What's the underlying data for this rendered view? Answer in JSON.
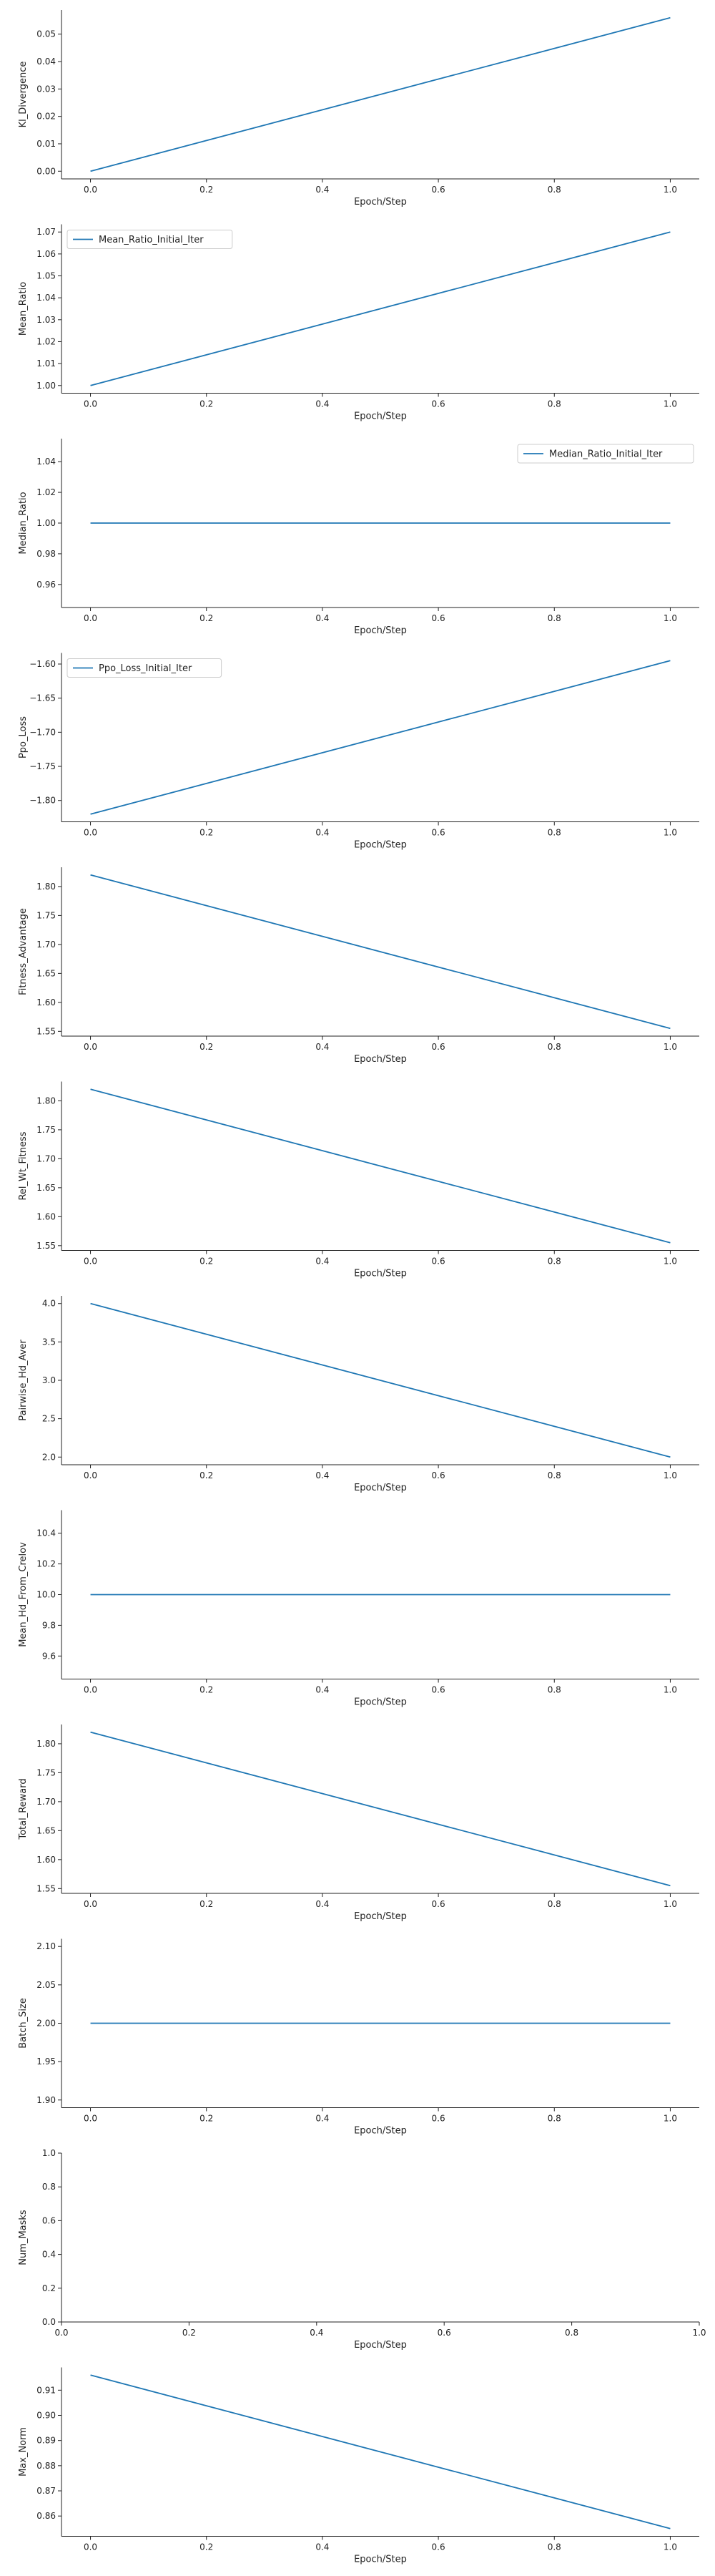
{
  "page": {
    "background": "#ffffff"
  },
  "style": {
    "line_color": "#1f77b4",
    "axis_color": "#222222",
    "legend_border": "#cccccc"
  },
  "chart_data": [
    {
      "type": "line",
      "ylabel": "Kl_Divergence",
      "xlabel": "Epoch/Step",
      "x": [
        0.0,
        1.0
      ],
      "series": [
        {
          "values": [
            0.0,
            0.056
          ]
        }
      ],
      "xlim": [
        -0.05,
        1.05
      ],
      "ylim": [
        -0.0028,
        0.0588
      ],
      "xticks": [
        0.0,
        0.2,
        0.4,
        0.6,
        0.8,
        1.0
      ],
      "xtick_labels": [
        "0.0",
        "0.2",
        "0.4",
        "0.6",
        "0.8",
        "1.0"
      ],
      "yticks": [
        0.0,
        0.01,
        0.02,
        0.03,
        0.04,
        0.05
      ],
      "ytick_labels": [
        "0.00",
        "0.01",
        "0.02",
        "0.03",
        "0.04",
        "0.05"
      ],
      "legend": null
    },
    {
      "type": "line",
      "ylabel": "Mean_Ratio",
      "xlabel": "Epoch/Step",
      "x": [
        0.0,
        1.0
      ],
      "series": [
        {
          "name": "Mean_Ratio_Initial_Iter",
          "values": [
            1.0,
            1.07
          ]
        }
      ],
      "xlim": [
        -0.05,
        1.05
      ],
      "ylim": [
        0.9965,
        1.0735
      ],
      "xticks": [
        0.0,
        0.2,
        0.4,
        0.6,
        0.8,
        1.0
      ],
      "xtick_labels": [
        "0.0",
        "0.2",
        "0.4",
        "0.6",
        "0.8",
        "1.0"
      ],
      "yticks": [
        1.0,
        1.01,
        1.02,
        1.03,
        1.04,
        1.05,
        1.06,
        1.07
      ],
      "ytick_labels": [
        "1.00",
        "1.01",
        "1.02",
        "1.03",
        "1.04",
        "1.05",
        "1.06",
        "1.07"
      ],
      "legend": "upper-left"
    },
    {
      "type": "line",
      "ylabel": "Median_Ratio",
      "xlabel": "Epoch/Step",
      "x": [
        0.0,
        1.0
      ],
      "series": [
        {
          "name": "Median_Ratio_Initial_Iter",
          "values": [
            1.0,
            1.0
          ]
        }
      ],
      "xlim": [
        -0.05,
        1.05
      ],
      "ylim": [
        0.945,
        1.055
      ],
      "xticks": [
        0.0,
        0.2,
        0.4,
        0.6,
        0.8,
        1.0
      ],
      "xtick_labels": [
        "0.0",
        "0.2",
        "0.4",
        "0.6",
        "0.8",
        "1.0"
      ],
      "yticks": [
        0.96,
        0.98,
        1.0,
        1.02,
        1.04
      ],
      "ytick_labels": [
        "0.96",
        "0.98",
        "1.00",
        "1.02",
        "1.04"
      ],
      "legend": "upper-right"
    },
    {
      "type": "line",
      "ylabel": "Ppo_Loss",
      "xlabel": "Epoch/Step",
      "x": [
        0.0,
        1.0
      ],
      "series": [
        {
          "name": "Ppo_Loss_Initial_Iter",
          "values": [
            -1.82,
            -1.595
          ]
        }
      ],
      "xlim": [
        -0.05,
        1.05
      ],
      "ylim": [
        -1.83125,
        -1.58375
      ],
      "xticks": [
        0.0,
        0.2,
        0.4,
        0.6,
        0.8,
        1.0
      ],
      "xtick_labels": [
        "0.0",
        "0.2",
        "0.4",
        "0.6",
        "0.8",
        "1.0"
      ],
      "yticks": [
        -1.8,
        -1.75,
        -1.7,
        -1.65,
        -1.6
      ],
      "ytick_labels": [
        "−1.80",
        "−1.75",
        "−1.70",
        "−1.65",
        "−1.60"
      ],
      "legend": "upper-left"
    },
    {
      "type": "line",
      "ylabel": "Fitness_Advantage",
      "xlabel": "Epoch/Step",
      "x": [
        0.0,
        1.0
      ],
      "series": [
        {
          "values": [
            1.82,
            1.555
          ]
        }
      ],
      "xlim": [
        -0.05,
        1.05
      ],
      "ylim": [
        1.54175,
        1.83325
      ],
      "xticks": [
        0.0,
        0.2,
        0.4,
        0.6,
        0.8,
        1.0
      ],
      "xtick_labels": [
        "0.0",
        "0.2",
        "0.4",
        "0.6",
        "0.8",
        "1.0"
      ],
      "yticks": [
        1.55,
        1.6,
        1.65,
        1.7,
        1.75,
        1.8
      ],
      "ytick_labels": [
        "1.55",
        "1.60",
        "1.65",
        "1.70",
        "1.75",
        "1.80"
      ],
      "legend": null
    },
    {
      "type": "line",
      "ylabel": "Rel_Wt_Fitness",
      "xlabel": "Epoch/Step",
      "x": [
        0.0,
        1.0
      ],
      "series": [
        {
          "values": [
            1.82,
            1.555
          ]
        }
      ],
      "xlim": [
        -0.05,
        1.05
      ],
      "ylim": [
        1.54175,
        1.83325
      ],
      "xticks": [
        0.0,
        0.2,
        0.4,
        0.6,
        0.8,
        1.0
      ],
      "xtick_labels": [
        "0.0",
        "0.2",
        "0.4",
        "0.6",
        "0.8",
        "1.0"
      ],
      "yticks": [
        1.55,
        1.6,
        1.65,
        1.7,
        1.75,
        1.8
      ],
      "ytick_labels": [
        "1.55",
        "1.60",
        "1.65",
        "1.70",
        "1.75",
        "1.80"
      ],
      "legend": null
    },
    {
      "type": "line",
      "ylabel": "Pairwise_Hd_Aver",
      "xlabel": "Epoch/Step",
      "x": [
        0.0,
        1.0
      ],
      "series": [
        {
          "values": [
            4.0,
            2.0
          ]
        }
      ],
      "xlim": [
        -0.05,
        1.05
      ],
      "ylim": [
        1.9,
        4.1
      ],
      "xticks": [
        0.0,
        0.2,
        0.4,
        0.6,
        0.8,
        1.0
      ],
      "xtick_labels": [
        "0.0",
        "0.2",
        "0.4",
        "0.6",
        "0.8",
        "1.0"
      ],
      "yticks": [
        2.0,
        2.5,
        3.0,
        3.5,
        4.0
      ],
      "ytick_labels": [
        "2.0",
        "2.5",
        "3.0",
        "3.5",
        "4.0"
      ],
      "legend": null
    },
    {
      "type": "line",
      "ylabel": "Mean_Hd_From_Crelov",
      "xlabel": "Epoch/Step",
      "x": [
        0.0,
        1.0
      ],
      "series": [
        {
          "values": [
            10.0,
            10.0
          ]
        }
      ],
      "xlim": [
        -0.05,
        1.05
      ],
      "ylim": [
        9.45,
        10.55
      ],
      "xticks": [
        0.0,
        0.2,
        0.4,
        0.6,
        0.8,
        1.0
      ],
      "xtick_labels": [
        "0.0",
        "0.2",
        "0.4",
        "0.6",
        "0.8",
        "1.0"
      ],
      "yticks": [
        9.6,
        9.8,
        10.0,
        10.2,
        10.4
      ],
      "ytick_labels": [
        "9.6",
        "9.8",
        "10.0",
        "10.2",
        "10.4"
      ],
      "legend": null
    },
    {
      "type": "line",
      "ylabel": "Total_Reward",
      "xlabel": "Epoch/Step",
      "x": [
        0.0,
        1.0
      ],
      "series": [
        {
          "values": [
            1.82,
            1.555
          ]
        }
      ],
      "xlim": [
        -0.05,
        1.05
      ],
      "ylim": [
        1.54175,
        1.83325
      ],
      "xticks": [
        0.0,
        0.2,
        0.4,
        0.6,
        0.8,
        1.0
      ],
      "xtick_labels": [
        "0.0",
        "0.2",
        "0.4",
        "0.6",
        "0.8",
        "1.0"
      ],
      "yticks": [
        1.55,
        1.6,
        1.65,
        1.7,
        1.75,
        1.8
      ],
      "ytick_labels": [
        "1.55",
        "1.60",
        "1.65",
        "1.70",
        "1.75",
        "1.80"
      ],
      "legend": null
    },
    {
      "type": "line",
      "ylabel": "Batch_Size",
      "xlabel": "Epoch/Step",
      "x": [
        0.0,
        1.0
      ],
      "series": [
        {
          "values": [
            2.0,
            2.0
          ]
        }
      ],
      "xlim": [
        -0.05,
        1.05
      ],
      "ylim": [
        1.89,
        2.11
      ],
      "xticks": [
        0.0,
        0.2,
        0.4,
        0.6,
        0.8,
        1.0
      ],
      "xtick_labels": [
        "0.0",
        "0.2",
        "0.4",
        "0.6",
        "0.8",
        "1.0"
      ],
      "yticks": [
        1.9,
        1.95,
        2.0,
        2.05,
        2.1
      ],
      "ytick_labels": [
        "1.90",
        "1.95",
        "2.00",
        "2.05",
        "2.10"
      ],
      "legend": null
    },
    {
      "type": "line",
      "ylabel": "Num_Masks",
      "xlabel": "Epoch/Step",
      "x": [],
      "series": [],
      "xlim": [
        0.0,
        1.0
      ],
      "ylim": [
        0.0,
        1.0
      ],
      "xticks": [
        0.0,
        0.2,
        0.4,
        0.6,
        0.8,
        1.0
      ],
      "xtick_labels": [
        "0.0",
        "0.2",
        "0.4",
        "0.6",
        "0.8",
        "1.0"
      ],
      "yticks": [
        0.0,
        0.2,
        0.4,
        0.6,
        0.8,
        1.0
      ],
      "ytick_labels": [
        "0.0",
        "0.2",
        "0.4",
        "0.6",
        "0.8",
        "1.0"
      ],
      "legend": null
    },
    {
      "type": "line",
      "ylabel": "Max_Norm",
      "xlabel": "Epoch/Step",
      "x": [
        0.0,
        1.0
      ],
      "series": [
        {
          "values": [
            0.916,
            0.855
          ]
        }
      ],
      "xlim": [
        -0.05,
        1.05
      ],
      "ylim": [
        0.85195,
        0.91905
      ],
      "xticks": [
        0.0,
        0.2,
        0.4,
        0.6,
        0.8,
        1.0
      ],
      "xtick_labels": [
        "0.0",
        "0.2",
        "0.4",
        "0.6",
        "0.8",
        "1.0"
      ],
      "yticks": [
        0.86,
        0.87,
        0.88,
        0.89,
        0.9,
        0.91
      ],
      "ytick_labels": [
        "0.86",
        "0.87",
        "0.88",
        "0.89",
        "0.90",
        "0.91"
      ],
      "legend": null
    }
  ]
}
